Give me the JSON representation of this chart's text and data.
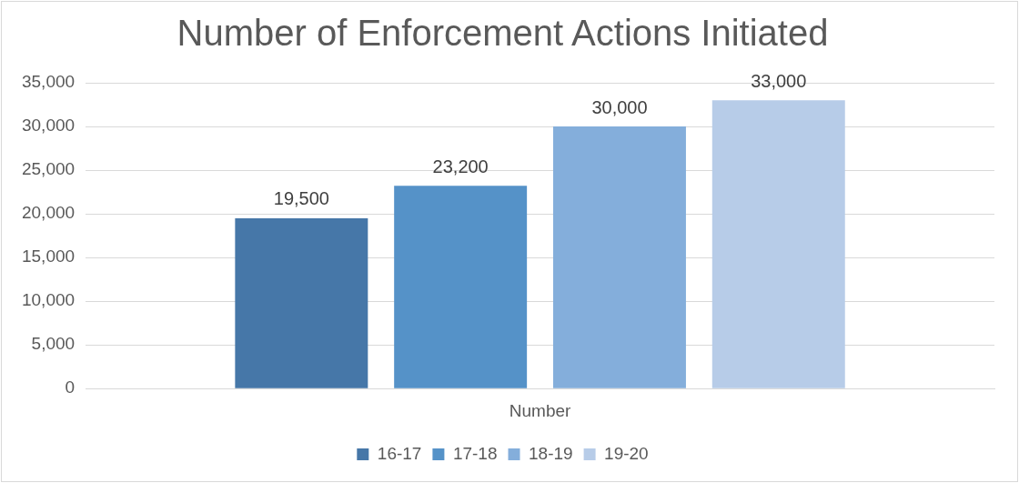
{
  "chart_data": {
    "type": "bar",
    "title": "Number of Enforcement Actions Initiated",
    "categories": [
      "Number"
    ],
    "series": [
      {
        "name": "16-17",
        "color": "#4677a8",
        "values": [
          19500
        ],
        "value_labels": [
          "19,500"
        ]
      },
      {
        "name": "17-18",
        "color": "#5592c8",
        "values": [
          23200
        ],
        "value_labels": [
          "23,200"
        ]
      },
      {
        "name": "18-19",
        "color": "#84aedb",
        "values": [
          30000
        ],
        "value_labels": [
          "30,000"
        ]
      },
      {
        "name": "19-20",
        "color": "#b7cce8",
        "values": [
          33000
        ],
        "value_labels": [
          "33,000"
        ]
      }
    ],
    "ylim": [
      0,
      35000
    ],
    "yticks": [
      0,
      {
        "value": 5000,
        "label": "5,000"
      },
      {
        "value": 10000,
        "label": "10,000"
      },
      {
        "value": 15000,
        "label": "15,000"
      },
      {
        "value": 20000,
        "label": "20,000"
      },
      {
        "value": 25000,
        "label": "25,000"
      },
      {
        "value": 30000,
        "label": "30,000"
      },
      {
        "value": 35000,
        "label": "35,000"
      }
    ],
    "grid": "y",
    "legend": "bottom"
  }
}
